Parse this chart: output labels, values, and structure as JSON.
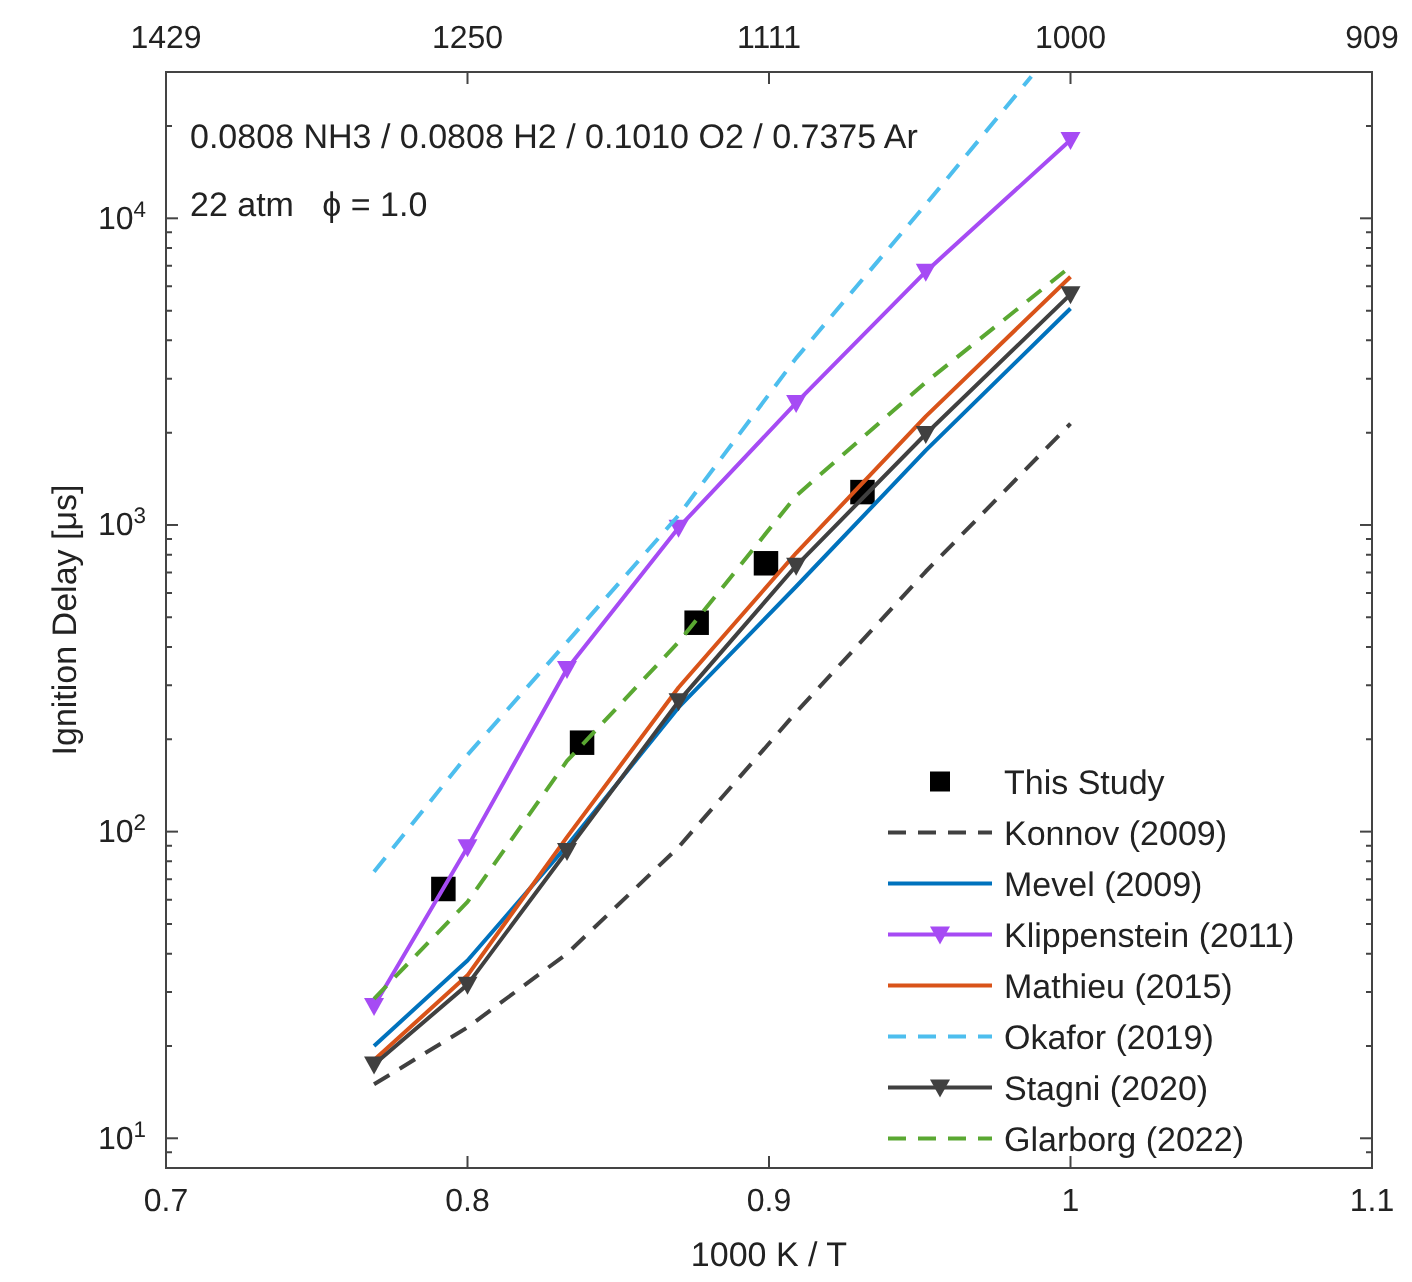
{
  "chart_data": {
    "type": "line",
    "xlabel": "1000 K / T",
    "ylabel": "Ignition Delay [μs]",
    "annotations": [
      "0.0808 NH3 / 0.0808 H2 / 0.1010 O2 / 0.7375 Ar",
      "22 atm   ϕ = 1.0",
      "1429",
      "1250",
      "1111",
      "1000",
      "909"
    ],
    "x": [
      0.769,
      0.8,
      0.833,
      0.87,
      0.909,
      0.952,
      1.0
    ],
    "xlim": [
      0.7,
      1.1
    ],
    "xticks": [
      0.7,
      0.8,
      0.9,
      1,
      1.1
    ],
    "ylim": [
      8,
      30000
    ],
    "yticks": [
      {
        "value": 10,
        "label": "10$^{1}$"
      },
      {
        "value": 100,
        "label": "10$^{2}$"
      },
      {
        "value": 1000,
        "label": "10$^{3}$"
      },
      {
        "value": 10000,
        "label": "10$^{4}$"
      }
    ],
    "log": "y",
    "grid": false,
    "legend": "bottom right",
    "series": [
      {
        "name": "This Study",
        "type": "scatter",
        "marker": "square",
        "color": "#000000",
        "x": [
          0.792,
          0.838,
          0.876,
          0.899,
          0.931
        ],
        "values": [
          65,
          195,
          480,
          750,
          1280
        ]
      },
      {
        "name": "Konnov (2009)",
        "color": "#404040",
        "line_style": "dashed",
        "values": [
          15,
          23,
          40,
          89,
          245,
          705,
          2140
        ]
      },
      {
        "name": "Mevel (2009)",
        "color": "#0072bd",
        "line_style": "solid",
        "values": [
          20,
          38,
          90,
          254,
          630,
          1750,
          5080
        ]
      },
      {
        "name": "Klippenstein (2011)",
        "color": "#a64bf4",
        "line_style": "solid",
        "marker": "triangle",
        "values": [
          27,
          89,
          339,
          980,
          2500,
          6700,
          18000
        ]
      },
      {
        "name": "Mathieu (2015)",
        "color": "#d95319",
        "line_style": "solid",
        "values": [
          18,
          34,
          96,
          295,
          810,
          2260,
          6450
        ]
      },
      {
        "name": "Okafor (2019)",
        "color": "#4dbeee",
        "line_style": "dashed",
        "x": [
          0.769,
          0.8,
          0.833,
          0.87,
          0.909,
          0.952,
          0.987
        ],
        "values": [
          74,
          178,
          415,
          1075,
          3500,
          11100,
          29000
        ]
      },
      {
        "name": "Stagni (2020)",
        "color": "#404040",
        "line_style": "solid",
        "marker": "triangle",
        "values": [
          17.4,
          31.7,
          86.5,
          266,
          736,
          1980,
          5650
        ]
      },
      {
        "name": "Glarborg (2022)",
        "color": "#5aa832",
        "line_style": "dashed",
        "values": [
          28.5,
          59,
          170,
          415,
          1245,
          2920,
          6960
        ]
      }
    ]
  }
}
